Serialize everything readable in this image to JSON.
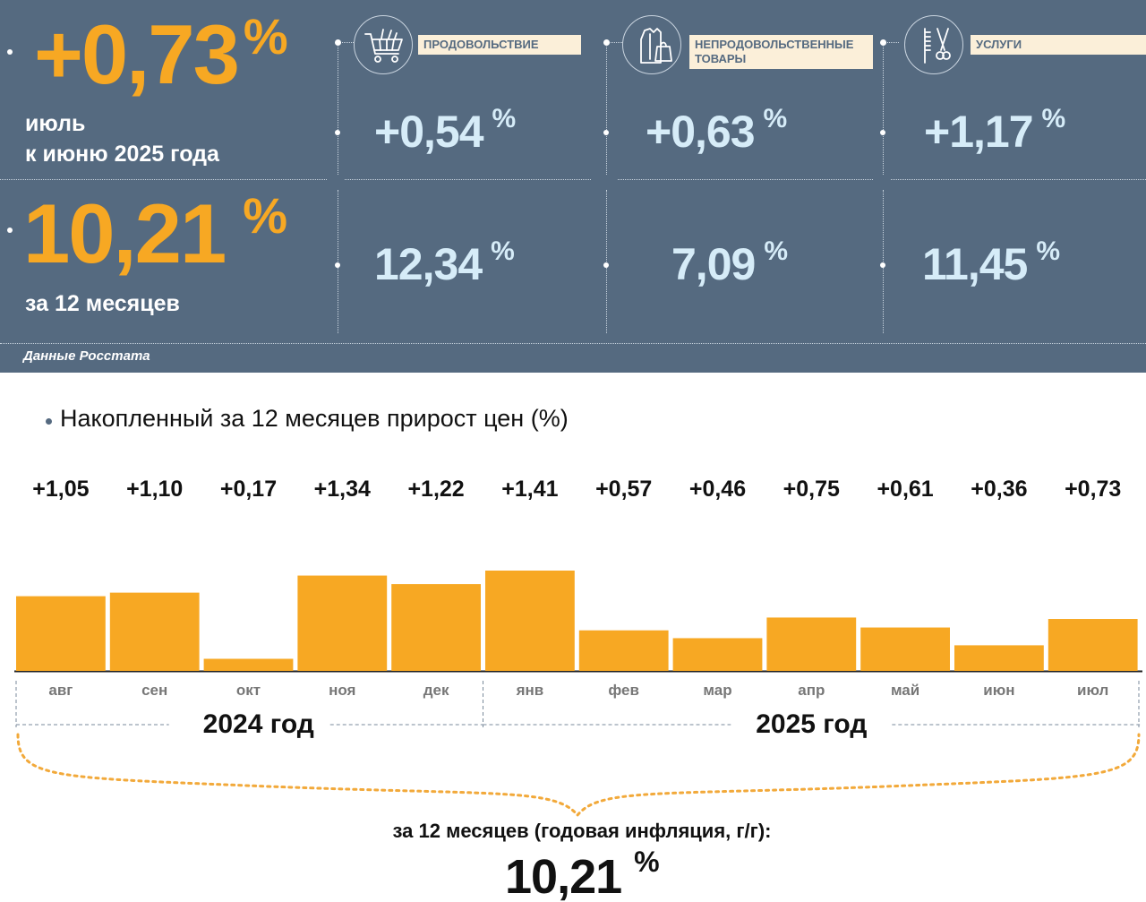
{
  "summary": {
    "month": {
      "value": "+0,73",
      "unit": "%",
      "caption_line1": "июль",
      "caption_line2": "к июню 2025 года"
    },
    "year": {
      "value": "10,21",
      "unit": "%",
      "caption": "за 12 месяцев"
    },
    "source": "Данные Росстата"
  },
  "categories": [
    {
      "label": "ПРОДОВОЛЬСТВИЕ",
      "icon": "shopping-cart-icon",
      "month_value": "+0,54",
      "year_value": "12,34",
      "unit": "%"
    },
    {
      "label_line1": "НЕПРОДОВОЛЬСТВЕННЫЕ",
      "label_line2": "ТОВАРЫ",
      "icon": "clothes-bag-icon",
      "month_value": "+0,63",
      "year_value": "7,09",
      "unit": "%"
    },
    {
      "label": "УСЛУГИ",
      "icon": "comb-scissors-icon",
      "month_value": "+1,17",
      "year_value": "11,45",
      "unit": "%"
    }
  ],
  "colors": {
    "panel": "#556a80",
    "accent": "#f7a823",
    "category_value": "#d6ecf8",
    "label_bg": "#fbefd9"
  },
  "chart_data": {
    "type": "bar",
    "title": "Накопленный за 12 месяцев прирост цен (%)",
    "categories": [
      "авг",
      "сен",
      "окт",
      "ноя",
      "дек",
      "янв",
      "фев",
      "мар",
      "апр",
      "май",
      "июн",
      "июл"
    ],
    "values": [
      1.05,
      1.1,
      0.17,
      1.34,
      1.22,
      1.41,
      0.57,
      0.46,
      0.75,
      0.61,
      0.36,
      0.73
    ],
    "value_labels": [
      "+1,05",
      "+1,10",
      "+0,17",
      "+1,34",
      "+1,22",
      "+1,41",
      "+0,57",
      "+0,46",
      "+0,75",
      "+0,61",
      "+0,36",
      "+0,73"
    ],
    "years": [
      {
        "label": "2024 год",
        "months": 5
      },
      {
        "label": "2025 год",
        "months": 7
      }
    ],
    "color": "#f7a823",
    "ylim": [
      0,
      1.5
    ],
    "annual_caption": "за 12 месяцев (годовая инфляция, г/г):",
    "annual_value": "10,21",
    "annual_unit": "%"
  }
}
